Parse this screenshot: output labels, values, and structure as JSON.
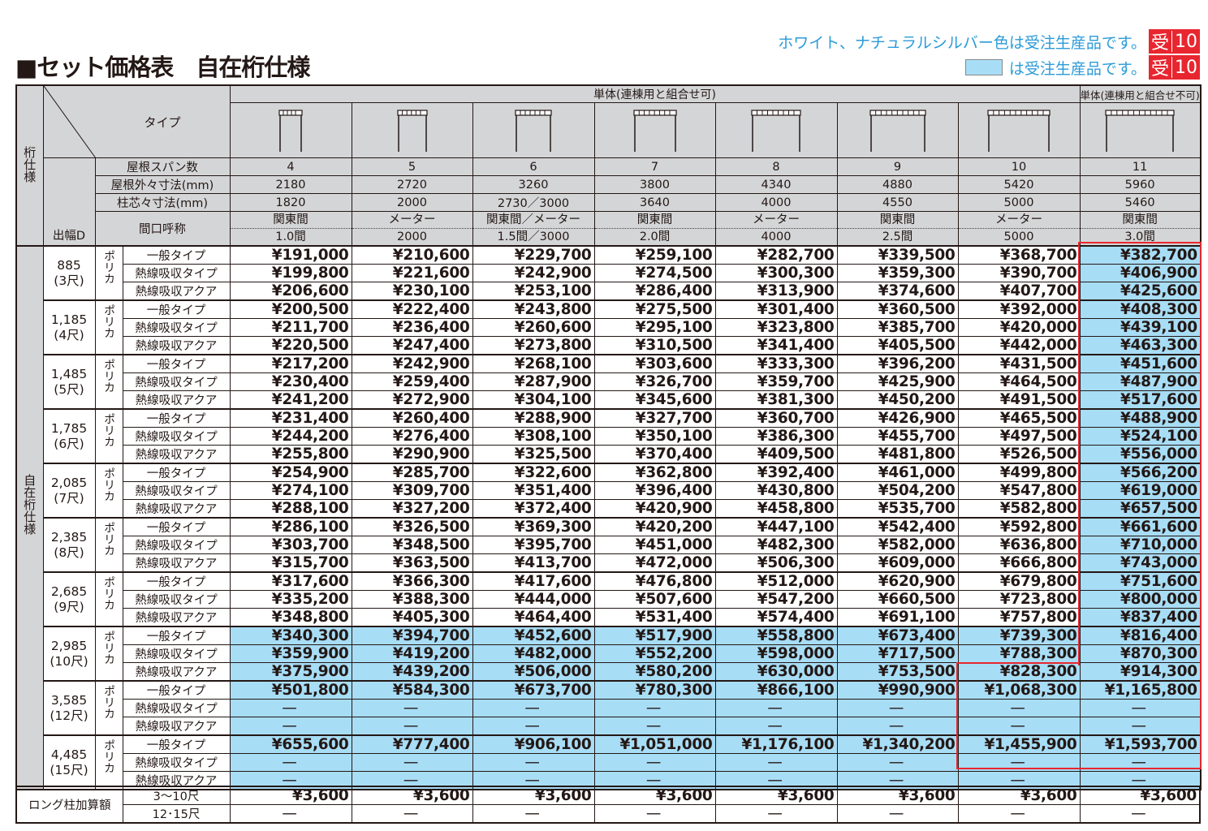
{
  "title": "■セット価格表　自在桁仕様",
  "notes": {
    "line1": "ホワイト、ナチュラルシルバー色は受注生産品です。",
    "line2": "は受注生産品です。",
    "badge_main": "受",
    "badge_days": "10"
  },
  "colors": {
    "made_to_order": "#a8ddf6",
    "badge": "#e8262f",
    "note_text": "#2b9bd8",
    "highlight_border": "#e8262f"
  },
  "header": {
    "spec_label": "桁仕様",
    "type_label": "タイプ",
    "depth_label": "出幅D",
    "group_combinable": "単体(連棟用と組合せ可)",
    "group_not_combinable": "単体(連棟用と組合せ不可)",
    "row_labels": {
      "spans": "屋根スパン数",
      "roof_outer": "屋根外々寸法(mm)",
      "post_center": "柱芯々寸法(mm)",
      "frontage": "間口呼称"
    },
    "columns": [
      {
        "spans": "4",
        "roof_outer": "2180",
        "post_center": "1820",
        "frontage_top": "関東間",
        "frontage_bottom": "1.0間",
        "icon": "pergola-front-icon"
      },
      {
        "spans": "5",
        "roof_outer": "2720",
        "post_center": "2000",
        "frontage_top": "メーター",
        "frontage_bottom": "2000",
        "icon": "pergola-front-icon"
      },
      {
        "spans": "6",
        "roof_outer": "3260",
        "post_center": "2730／3000",
        "frontage_top": "関東間／メーター",
        "frontage_bottom": "1.5間／3000",
        "icon": "pergola-front-icon"
      },
      {
        "spans": "7",
        "roof_outer": "3800",
        "post_center": "3640",
        "frontage_top": "関東間",
        "frontage_bottom": "2.0間",
        "icon": "pergola-front-icon"
      },
      {
        "spans": "8",
        "roof_outer": "4340",
        "post_center": "4000",
        "frontage_top": "メーター",
        "frontage_bottom": "4000",
        "icon": "pergola-front-icon"
      },
      {
        "spans": "9",
        "roof_outer": "4880",
        "post_center": "4550",
        "frontage_top": "関東間",
        "frontage_bottom": "2.5間",
        "icon": "pergola-front-icon"
      },
      {
        "spans": "10",
        "roof_outer": "5420",
        "post_center": "5000",
        "frontage_top": "メーター",
        "frontage_bottom": "5000",
        "icon": "pergola-front-icon"
      },
      {
        "spans": "11",
        "roof_outer": "5960",
        "post_center": "5460",
        "frontage_top": "関東間",
        "frontage_bottom": "3.0間",
        "icon": "pergola-front-icon",
        "made_to_order": true
      }
    ]
  },
  "body_spec_label": "自在桁仕様",
  "groups": [
    {
      "depth": "885",
      "shaku": "(3尺)",
      "material": "ポリカ",
      "rows": [
        {
          "type": "一般タイプ",
          "prices": [
            "¥191,000",
            "¥210,600",
            "¥229,700",
            "¥259,100",
            "¥282,700",
            "¥339,500",
            "¥368,700",
            "¥382,700"
          ]
        },
        {
          "type": "熱線吸収タイプ",
          "prices": [
            "¥199,800",
            "¥221,600",
            "¥242,900",
            "¥274,500",
            "¥300,300",
            "¥359,300",
            "¥390,700",
            "¥406,900"
          ]
        },
        {
          "type": "熱線吸収アクア",
          "prices": [
            "¥206,600",
            "¥230,100",
            "¥253,100",
            "¥286,400",
            "¥313,900",
            "¥374,600",
            "¥407,700",
            "¥425,600"
          ]
        }
      ]
    },
    {
      "depth": "1,185",
      "shaku": "(4尺)",
      "material": "ポリカ",
      "rows": [
        {
          "type": "一般タイプ",
          "prices": [
            "¥200,500",
            "¥222,400",
            "¥243,800",
            "¥275,500",
            "¥301,400",
            "¥360,500",
            "¥392,000",
            "¥408,300"
          ]
        },
        {
          "type": "熱線吸収タイプ",
          "prices": [
            "¥211,700",
            "¥236,400",
            "¥260,600",
            "¥295,100",
            "¥323,800",
            "¥385,700",
            "¥420,000",
            "¥439,100"
          ]
        },
        {
          "type": "熱線吸収アクア",
          "prices": [
            "¥220,500",
            "¥247,400",
            "¥273,800",
            "¥310,500",
            "¥341,400",
            "¥405,500",
            "¥442,000",
            "¥463,300"
          ]
        }
      ]
    },
    {
      "depth": "1,485",
      "shaku": "(5尺)",
      "material": "ポリカ",
      "rows": [
        {
          "type": "一般タイプ",
          "prices": [
            "¥217,200",
            "¥242,900",
            "¥268,100",
            "¥303,600",
            "¥333,300",
            "¥396,200",
            "¥431,500",
            "¥451,600"
          ]
        },
        {
          "type": "熱線吸収タイプ",
          "prices": [
            "¥230,400",
            "¥259,400",
            "¥287,900",
            "¥326,700",
            "¥359,700",
            "¥425,900",
            "¥464,500",
            "¥487,900"
          ]
        },
        {
          "type": "熱線吸収アクア",
          "prices": [
            "¥241,200",
            "¥272,900",
            "¥304,100",
            "¥345,600",
            "¥381,300",
            "¥450,200",
            "¥491,500",
            "¥517,600"
          ]
        }
      ]
    },
    {
      "depth": "1,785",
      "shaku": "(6尺)",
      "material": "ポリカ",
      "rows": [
        {
          "type": "一般タイプ",
          "prices": [
            "¥231,400",
            "¥260,400",
            "¥288,900",
            "¥327,700",
            "¥360,700",
            "¥426,900",
            "¥465,500",
            "¥488,900"
          ]
        },
        {
          "type": "熱線吸収タイプ",
          "prices": [
            "¥244,200",
            "¥276,400",
            "¥308,100",
            "¥350,100",
            "¥386,300",
            "¥455,700",
            "¥497,500",
            "¥524,100"
          ]
        },
        {
          "type": "熱線吸収アクア",
          "prices": [
            "¥255,800",
            "¥290,900",
            "¥325,500",
            "¥370,400",
            "¥409,500",
            "¥481,800",
            "¥526,500",
            "¥556,000"
          ]
        }
      ]
    },
    {
      "depth": "2,085",
      "shaku": "(7尺)",
      "material": "ポリカ",
      "rows": [
        {
          "type": "一般タイプ",
          "prices": [
            "¥254,900",
            "¥285,700",
            "¥322,600",
            "¥362,800",
            "¥392,400",
            "¥461,000",
            "¥499,800",
            "¥566,200"
          ]
        },
        {
          "type": "熱線吸収タイプ",
          "prices": [
            "¥274,100",
            "¥309,700",
            "¥351,400",
            "¥396,400",
            "¥430,800",
            "¥504,200",
            "¥547,800",
            "¥619,000"
          ]
        },
        {
          "type": "熱線吸収アクア",
          "prices": [
            "¥288,100",
            "¥327,200",
            "¥372,400",
            "¥420,900",
            "¥458,800",
            "¥535,700",
            "¥582,800",
            "¥657,500"
          ]
        }
      ]
    },
    {
      "depth": "2,385",
      "shaku": "(8尺)",
      "material": "ポリカ",
      "rows": [
        {
          "type": "一般タイプ",
          "prices": [
            "¥286,100",
            "¥326,500",
            "¥369,300",
            "¥420,200",
            "¥447,100",
            "¥542,400",
            "¥592,800",
            "¥661,600"
          ]
        },
        {
          "type": "熱線吸収タイプ",
          "prices": [
            "¥303,700",
            "¥348,500",
            "¥395,700",
            "¥451,000",
            "¥482,300",
            "¥582,000",
            "¥636,800",
            "¥710,000"
          ]
        },
        {
          "type": "熱線吸収アクア",
          "prices": [
            "¥315,700",
            "¥363,500",
            "¥413,700",
            "¥472,000",
            "¥506,300",
            "¥609,000",
            "¥666,800",
            "¥743,000"
          ]
        }
      ]
    },
    {
      "depth": "2,685",
      "shaku": "(9尺)",
      "material": "ポリカ",
      "rows": [
        {
          "type": "一般タイプ",
          "prices": [
            "¥317,600",
            "¥366,300",
            "¥417,600",
            "¥476,800",
            "¥512,000",
            "¥620,900",
            "¥679,800",
            "¥751,600"
          ]
        },
        {
          "type": "熱線吸収タイプ",
          "prices": [
            "¥335,200",
            "¥388,300",
            "¥444,000",
            "¥507,600",
            "¥547,200",
            "¥660,500",
            "¥723,800",
            "¥800,000"
          ]
        },
        {
          "type": "熱線吸収アクア",
          "prices": [
            "¥348,800",
            "¥405,300",
            "¥464,400",
            "¥531,400",
            "¥574,400",
            "¥691,100",
            "¥757,800",
            "¥837,400"
          ]
        }
      ]
    },
    {
      "depth": "2,985",
      "shaku": "(10尺)",
      "material": "ポリカ",
      "made_to_order": true,
      "rows": [
        {
          "type": "一般タイプ",
          "prices": [
            "¥340,300",
            "¥394,700",
            "¥452,600",
            "¥517,900",
            "¥558,800",
            "¥673,400",
            "¥739,300",
            "¥816,400"
          ]
        },
        {
          "type": "熱線吸収タイプ",
          "prices": [
            "¥359,900",
            "¥419,200",
            "¥482,000",
            "¥552,200",
            "¥598,000",
            "¥717,500",
            "¥788,300",
            "¥870,300"
          ]
        },
        {
          "type": "熱線吸収アクア",
          "prices": [
            "¥375,900",
            "¥439,200",
            "¥506,000",
            "¥580,200",
            "¥630,000",
            "¥753,500",
            "¥828,300",
            "¥914,300"
          ]
        }
      ]
    },
    {
      "depth": "3,585",
      "shaku": "(12尺)",
      "material": "ポリカ",
      "made_to_order": true,
      "rows": [
        {
          "type": "一般タイプ",
          "prices": [
            "¥501,800",
            "¥584,300",
            "¥673,700",
            "¥780,300",
            "¥866,100",
            "¥990,900",
            "¥1,068,300",
            "¥1,165,800"
          ]
        },
        {
          "type": "熱線吸収タイプ",
          "prices": [
            "—",
            "—",
            "—",
            "—",
            "—",
            "—",
            "—",
            "—"
          ]
        },
        {
          "type": "熱線吸収アクア",
          "prices": [
            "—",
            "—",
            "—",
            "—",
            "—",
            "—",
            "—",
            "—"
          ]
        }
      ]
    },
    {
      "depth": "4,485",
      "shaku": "(15尺)",
      "material": "ポリカ",
      "made_to_order": true,
      "rows": [
        {
          "type": "一般タイプ",
          "prices": [
            "¥655,600",
            "¥777,400",
            "¥906,100",
            "¥1,051,000",
            "¥1,176,100",
            "¥1,340,200",
            "¥1,455,900",
            "¥1,593,700"
          ]
        },
        {
          "type": "熱線吸収タイプ",
          "prices": [
            "—",
            "—",
            "—",
            "—",
            "—",
            "—",
            "—",
            "—"
          ]
        },
        {
          "type": "熱線吸収アクア",
          "prices": [
            "—",
            "—",
            "—",
            "—",
            "—",
            "—",
            "—",
            "—"
          ]
        }
      ]
    }
  ],
  "long_post": {
    "label": "ロング柱加算額",
    "rows": [
      {
        "range": "3〜10尺",
        "prices": [
          "¥3,600",
          "¥3,600",
          "¥3,600",
          "¥3,600",
          "¥3,600",
          "¥3,600",
          "¥3,600",
          "¥3,600"
        ]
      },
      {
        "range": "12･15尺",
        "prices": [
          "—",
          "—",
          "—",
          "—",
          "—",
          "—",
          "—",
          "—"
        ]
      }
    ]
  }
}
